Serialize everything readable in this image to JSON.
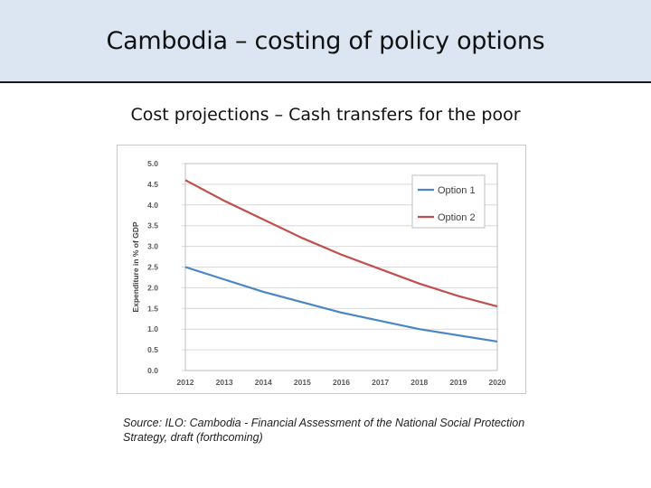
{
  "slide": {
    "title": "Cambodia – costing of policy options",
    "subtitle": "Cost projections – Cash transfers for the poor",
    "source": "Source: ILO: Cambodia - Financial Assessment of the National Social Protection Strategy, draft (forthcoming)"
  },
  "chart_data": {
    "type": "line",
    "x": [
      2012,
      2013,
      2014,
      2015,
      2016,
      2017,
      2018,
      2019,
      2020
    ],
    "x_tick_labels": [
      "2012",
      "2013",
      "2014",
      "2015",
      "2016",
      "2017",
      "2018",
      "2019",
      "2020"
    ],
    "series": [
      {
        "name": "Option 1",
        "color": "#4a86c5",
        "values": [
          2.5,
          2.2,
          1.9,
          1.65,
          1.4,
          1.2,
          1.0,
          0.85,
          0.7
        ]
      },
      {
        "name": "Option 2",
        "color": "#c0504d",
        "values": [
          4.6,
          4.1,
          3.65,
          3.2,
          2.8,
          2.45,
          2.1,
          1.8,
          1.55
        ]
      }
    ],
    "ylabel": "Expenditure in % of GDP",
    "ylim": [
      0,
      5
    ],
    "y_ticks": [
      0,
      0.5,
      1,
      1.5,
      2,
      2.5,
      3,
      3.5,
      4,
      4.5,
      5
    ],
    "y_tick_labels": [
      "0.0",
      "0.5",
      "1.0",
      "1.5",
      "2.0",
      "2.5",
      "3.0",
      "3.5",
      "4.0",
      "4.5",
      "5.0"
    ],
    "grid": true,
    "legend_position": "top-right"
  }
}
